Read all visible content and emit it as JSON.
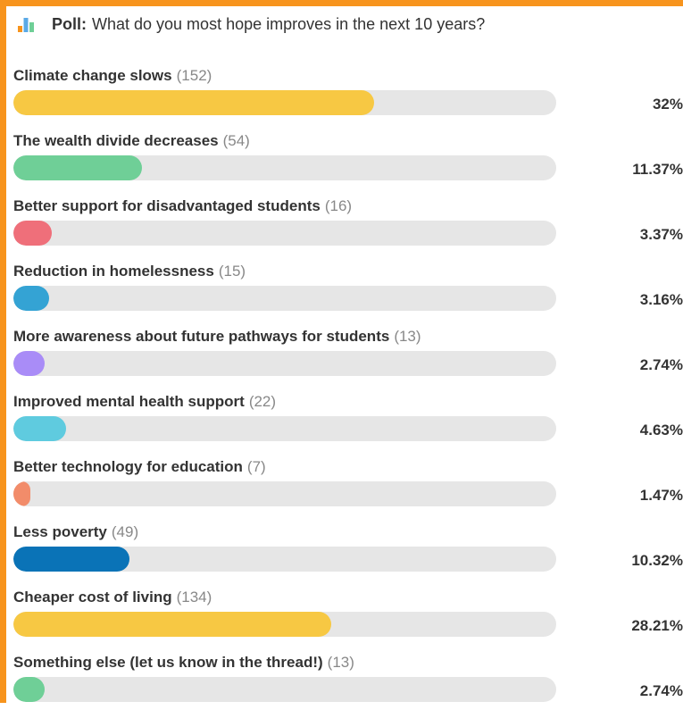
{
  "poll": {
    "label": "Poll:",
    "question": "What do you most hope improves in the next 10 years?",
    "icon": "bar-chart-icon"
  },
  "options": [
    {
      "label": "Climate change slows",
      "count": "(152)",
      "percent": "32%",
      "fraction": 0.32,
      "color": "#f7c843"
    },
    {
      "label": "The wealth divide decreases",
      "count": "(54)",
      "percent": "11.37%",
      "fraction": 0.1137,
      "color": "#6fcf97"
    },
    {
      "label": "Better support for disadvantaged students",
      "count": "(16)",
      "percent": "3.37%",
      "fraction": 0.0337,
      "color": "#ef6f7a"
    },
    {
      "label": "Reduction in homelessness",
      "count": "(15)",
      "percent": "3.16%",
      "fraction": 0.0316,
      "color": "#34a3d4"
    },
    {
      "label": "More awareness about future pathways for students",
      "count": "(13)",
      "percent": "2.74%",
      "fraction": 0.0274,
      "color": "#a98cf7"
    },
    {
      "label": "Improved mental health support",
      "count": "(22)",
      "percent": "4.63%",
      "fraction": 0.0463,
      "color": "#5fcbdf"
    },
    {
      "label": "Better technology for education",
      "count": "(7)",
      "percent": "1.47%",
      "fraction": 0.0147,
      "color": "#f28c6a"
    },
    {
      "label": "Less poverty",
      "count": "(49)",
      "percent": "10.32%",
      "fraction": 0.1032,
      "color": "#0a73b7"
    },
    {
      "label": "Cheaper cost of living",
      "count": "(134)",
      "percent": "28.21%",
      "fraction": 0.2821,
      "color": "#f7c843"
    },
    {
      "label": "Something else (let us know in the thread!)",
      "count": "(13)",
      "percent": "2.74%",
      "fraction": 0.0274,
      "color": "#6fcf97"
    }
  ],
  "colors": {
    "frame": "#f7941d",
    "track": "#e6e6e6"
  }
}
